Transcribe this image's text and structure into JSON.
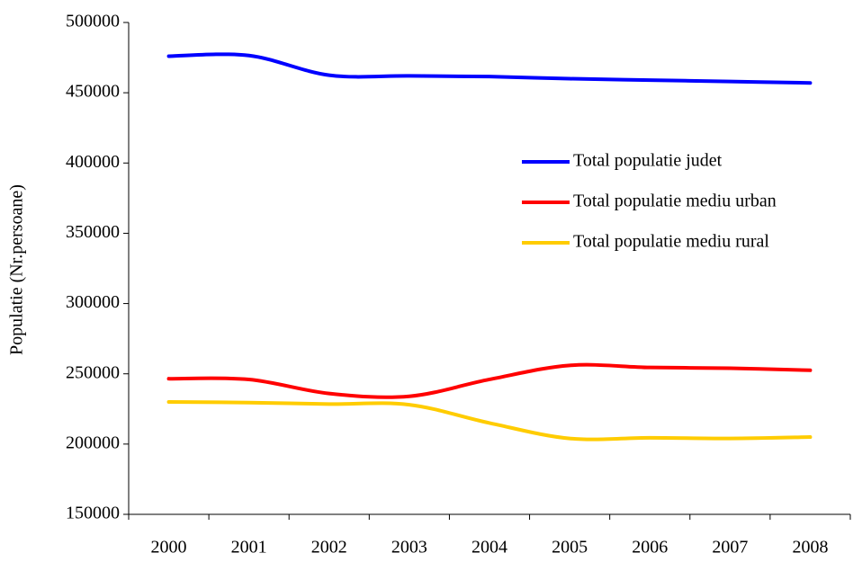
{
  "chart_data": {
    "type": "line",
    "y_label": "Populatie (Nr.persoane)",
    "categories": [
      "2000",
      "2001",
      "2002",
      "2003",
      "2004",
      "2005",
      "2006",
      "2007",
      "2008"
    ],
    "series": [
      {
        "name": "Total populatie judet",
        "color": "#0000ff",
        "values": [
          476000,
          476500,
          462500,
          462000,
          461500,
          460000,
          459000,
          458000,
          457000
        ]
      },
      {
        "name": "Total populatie mediu urban",
        "color": "#ff0000",
        "values": [
          246500,
          246000,
          236000,
          234000,
          246000,
          256000,
          254500,
          254000,
          252500
        ]
      },
      {
        "name": "Total populatie mediu rural",
        "color": "#ffcc00",
        "values": [
          230000,
          229500,
          228500,
          228000,
          215000,
          204000,
          204500,
          204000,
          205000
        ]
      }
    ],
    "ylim": [
      150000,
      500000
    ],
    "yticks": [
      150000,
      200000,
      250000,
      300000,
      350000,
      400000,
      450000,
      500000
    ],
    "grid": false,
    "legend": "right"
  }
}
